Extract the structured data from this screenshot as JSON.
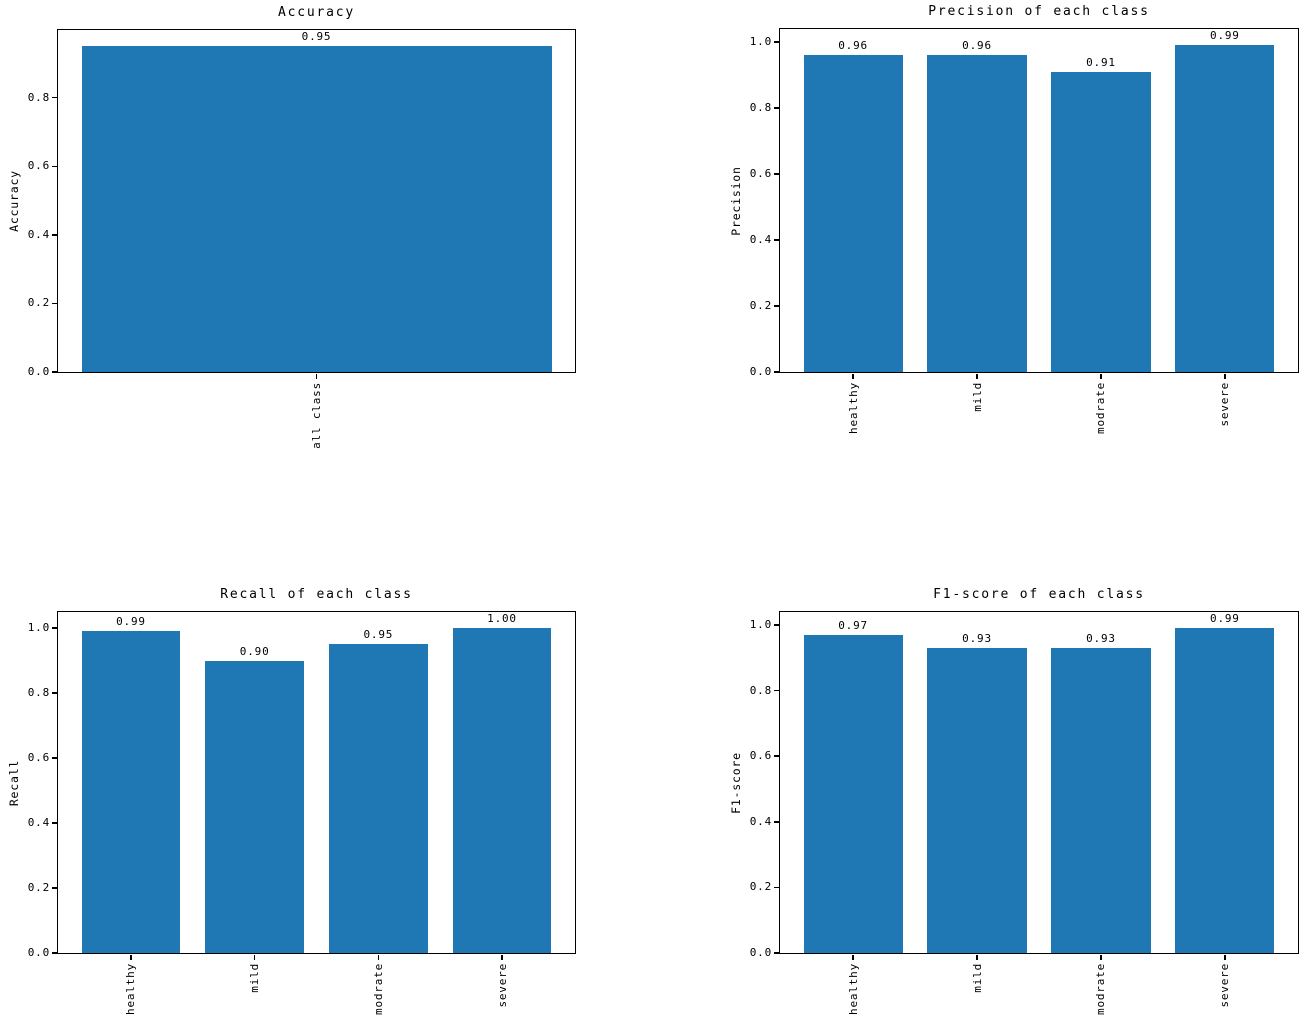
{
  "figure": {
    "background": "#ffffff",
    "bar_color": "#1f77b4",
    "spine_color": "#000000",
    "text_color": "#000000"
  },
  "chart_data": [
    {
      "type": "bar",
      "title": "Accuracy",
      "xlabel": "",
      "ylabel": "Accuracy",
      "categories": [
        "all class"
      ],
      "values": [
        0.95
      ],
      "bar_labels": [
        "0.95"
      ],
      "yticks": [
        "0.0",
        "0.2",
        "0.4",
        "0.6",
        "0.8"
      ],
      "ylim": [
        0,
        0.9975
      ],
      "grid": false,
      "legend": null
    },
    {
      "type": "bar",
      "title": "Precision of each class",
      "xlabel": "",
      "ylabel": "Precision",
      "categories": [
        "healthy",
        "mild",
        "modrate",
        "severe"
      ],
      "values": [
        0.96,
        0.96,
        0.91,
        0.99
      ],
      "bar_labels": [
        "0.96",
        "0.96",
        "0.91",
        "0.99"
      ],
      "yticks": [
        "0.0",
        "0.2",
        "0.4",
        "0.6",
        "0.8",
        "1.0"
      ],
      "ylim": [
        0,
        1.0395
      ],
      "grid": false,
      "legend": null
    },
    {
      "type": "bar",
      "title": "Recall of each class",
      "xlabel": "",
      "ylabel": "Recall",
      "categories": [
        "healthy",
        "mild",
        "modrate",
        "severe"
      ],
      "values": [
        0.99,
        0.9,
        0.95,
        1.0
      ],
      "bar_labels": [
        "0.99",
        "0.90",
        "0.95",
        "1.00"
      ],
      "yticks": [
        "0.0",
        "0.2",
        "0.4",
        "0.6",
        "0.8",
        "1.0"
      ],
      "ylim": [
        0,
        1.05
      ],
      "grid": false,
      "legend": null
    },
    {
      "type": "bar",
      "title": "F1-score of each class",
      "xlabel": "",
      "ylabel": "F1-score",
      "categories": [
        "healthy",
        "mild",
        "modrate",
        "severe"
      ],
      "values": [
        0.97,
        0.93,
        0.93,
        0.99
      ],
      "bar_labels": [
        "0.97",
        "0.93",
        "0.93",
        "0.99"
      ],
      "yticks": [
        "0.0",
        "0.2",
        "0.4",
        "0.6",
        "0.8",
        "1.0"
      ],
      "ylim": [
        0,
        1.0395
      ],
      "grid": false,
      "legend": null
    }
  ]
}
